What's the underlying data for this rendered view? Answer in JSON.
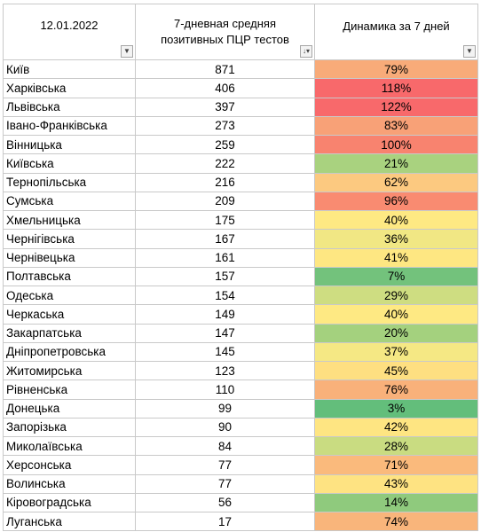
{
  "header": {
    "date": "12.01.2022",
    "avg_label": "7-дневная средняя позитивных ПЦР тестов",
    "dynamics_label": "Динамика за 7 дней",
    "filter_icon": "dropdown-arrow-icon",
    "sort_filter_icon": "sort-filter-icon"
  },
  "rows": [
    {
      "region": "Київ",
      "avg": "871",
      "dynamics": "79%",
      "color": "#f8ab79"
    },
    {
      "region": "Харківська",
      "avg": "406",
      "dynamics": "118%",
      "color": "#f8696b"
    },
    {
      "region": "Львівська",
      "avg": "397",
      "dynamics": "122%",
      "color": "#f8696b"
    },
    {
      "region": "Івано-Франківська",
      "avg": "273",
      "dynamics": "83%",
      "color": "#f8a177"
    },
    {
      "region": "Вінницька",
      "avg": "259",
      "dynamics": "100%",
      "color": "#f8836f"
    },
    {
      "region": "Київська",
      "avg": "222",
      "dynamics": "21%",
      "color": "#a9d27f"
    },
    {
      "region": "Тернопільська",
      "avg": "216",
      "dynamics": "62%",
      "color": "#fcc980"
    },
    {
      "region": "Сумська",
      "avg": "209",
      "dynamics": "96%",
      "color": "#f98b71"
    },
    {
      "region": "Хмельницька",
      "avg": "175",
      "dynamics": "40%",
      "color": "#fee983"
    },
    {
      "region": "Чернігівська",
      "avg": "167",
      "dynamics": "36%",
      "color": "#f1e784"
    },
    {
      "region": "Чернівецька",
      "avg": "161",
      "dynamics": "41%",
      "color": "#fee782"
    },
    {
      "region": "Полтавська",
      "avg": "157",
      "dynamics": "7%",
      "color": "#73c27c"
    },
    {
      "region": "Одеська",
      "avg": "154",
      "dynamics": "29%",
      "color": "#cedd81"
    },
    {
      "region": "Черкаська",
      "avg": "149",
      "dynamics": "40%",
      "color": "#fee983"
    },
    {
      "region": "Закарпатська",
      "avg": "147",
      "dynamics": "20%",
      "color": "#a4d17e"
    },
    {
      "region": "Дніпропетровська",
      "avg": "145",
      "dynamics": "37%",
      "color": "#f5e884"
    },
    {
      "region": "Житомирська",
      "avg": "123",
      "dynamics": "45%",
      "color": "#fedf81"
    },
    {
      "region": "Рівненська",
      "avg": "110",
      "dynamics": "76%",
      "color": "#f9b17a"
    },
    {
      "region": "Донецька",
      "avg": "99",
      "dynamics": "3%",
      "color": "#63be7b"
    },
    {
      "region": "Запорізька",
      "avg": "90",
      "dynamics": "42%",
      "color": "#fee582"
    },
    {
      "region": "Миколаївська",
      "avg": "84",
      "dynamics": "28%",
      "color": "#c9dc81"
    },
    {
      "region": "Херсонська",
      "avg": "77",
      "dynamics": "71%",
      "color": "#faba7c"
    },
    {
      "region": "Волинська",
      "avg": "77",
      "dynamics": "43%",
      "color": "#fee382"
    },
    {
      "region": "Кіровоградська",
      "avg": "56",
      "dynamics": "14%",
      "color": "#8fca7d"
    },
    {
      "region": "Луганська",
      "avg": "17",
      "dynamics": "74%",
      "color": "#f9b57b"
    }
  ]
}
